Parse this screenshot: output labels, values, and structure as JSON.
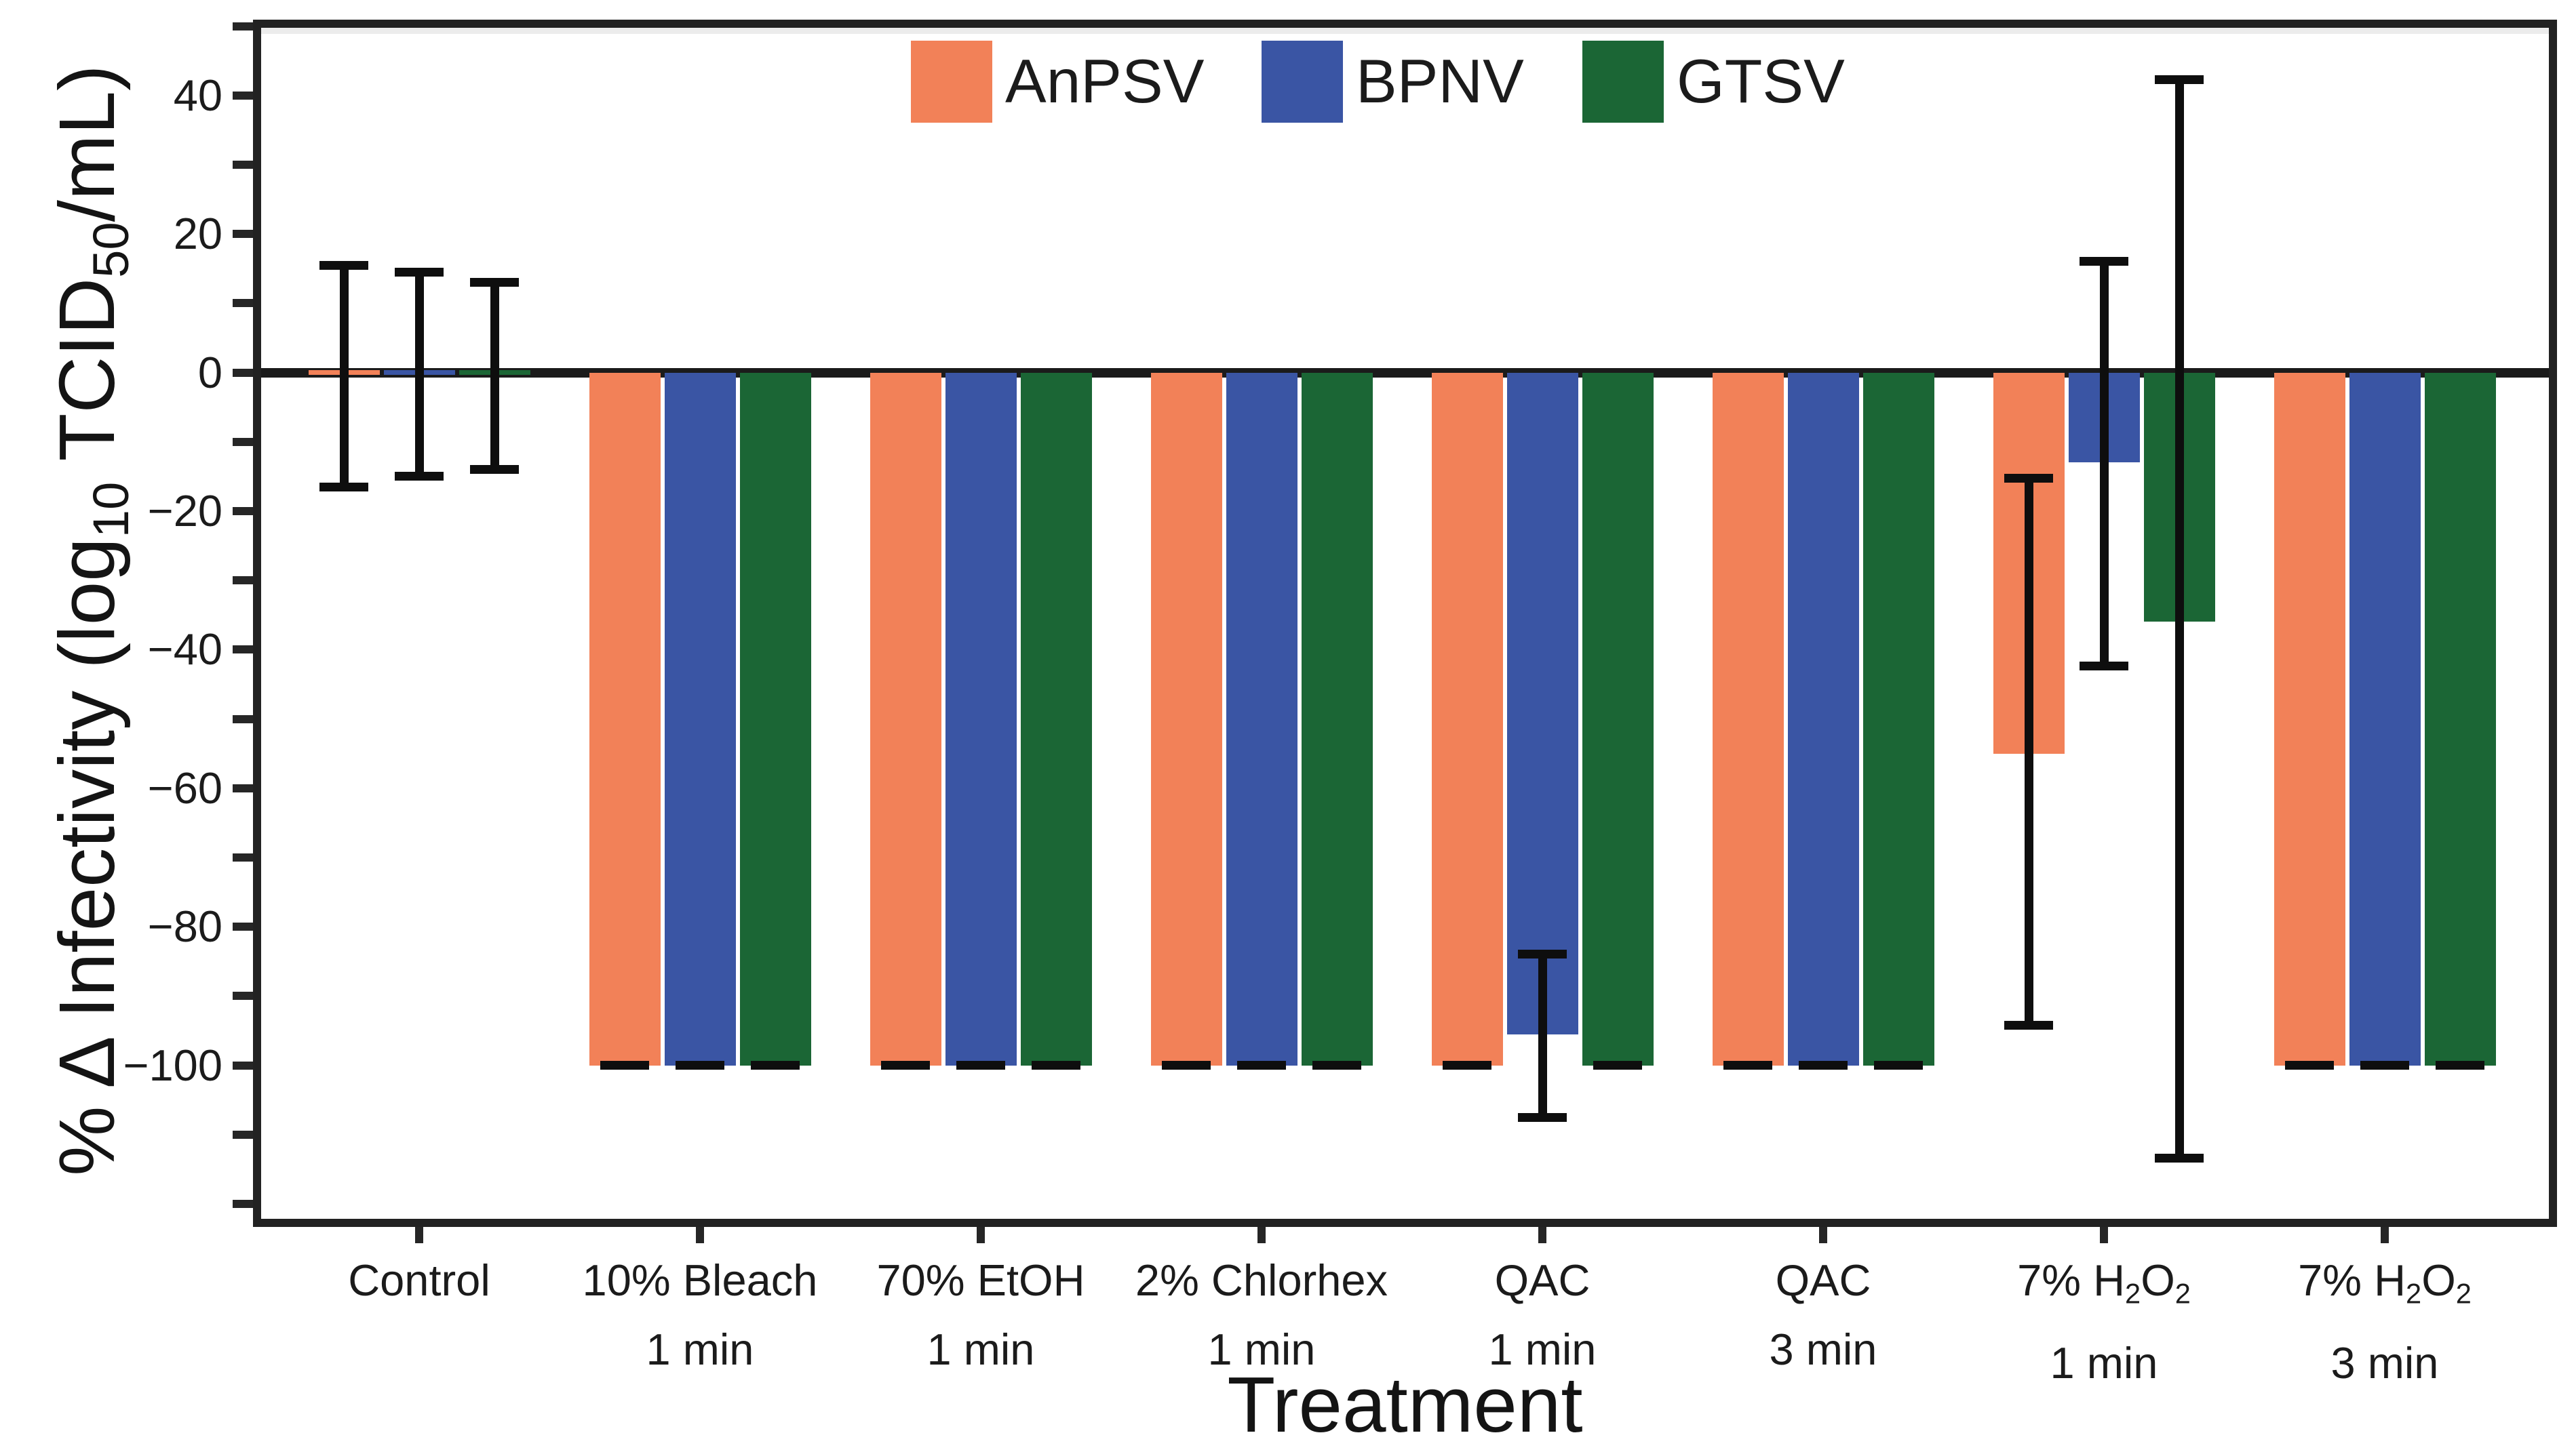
{
  "chart_data": {
    "type": "bar",
    "title": "",
    "xlabel": "Treatment",
    "ylabel": "% Δ Infectivity (log10 TCID50/mL)",
    "ylabel_segments": [
      {
        "t": "% Δ Infectivity (log"
      },
      {
        "t": "10",
        "sub": true
      },
      {
        "t": " TCID"
      },
      {
        "t": "50",
        "sub": true
      },
      {
        "t": "/mL)"
      }
    ],
    "categories": [
      {
        "id": "control",
        "label": "Control",
        "lines": [
          [
            {
              "t": "Control"
            }
          ]
        ]
      },
      {
        "id": "bleach-1min",
        "label": "10% Bleach 1 min",
        "lines": [
          [
            {
              "t": "10% Bleach"
            }
          ],
          [
            {
              "t": "1 min"
            }
          ]
        ]
      },
      {
        "id": "etoh-1min",
        "label": "70% EtOH 1 min",
        "lines": [
          [
            {
              "t": "70% EtOH"
            }
          ],
          [
            {
              "t": "1 min"
            }
          ]
        ]
      },
      {
        "id": "chlorhex-1min",
        "label": "2% Chlorhex 1 min",
        "lines": [
          [
            {
              "t": "2% Chlorhex"
            }
          ],
          [
            {
              "t": "1 min"
            }
          ]
        ]
      },
      {
        "id": "qac-1min",
        "label": "QAC 1 min",
        "lines": [
          [
            {
              "t": "QAC"
            }
          ],
          [
            {
              "t": "1 min"
            }
          ]
        ]
      },
      {
        "id": "qac-3min",
        "label": "QAC 3 min",
        "lines": [
          [
            {
              "t": "QAC"
            }
          ],
          [
            {
              "t": "3 min"
            }
          ]
        ]
      },
      {
        "id": "h2o2-1min",
        "label": "7% H2O2 1 min",
        "lines": [
          [
            {
              "t": "7% H"
            },
            {
              "t": "2",
              "sub": true
            },
            {
              "t": "O"
            },
            {
              "t": "2",
              "sub": true
            }
          ],
          [
            {
              "t": "1 min"
            }
          ]
        ]
      },
      {
        "id": "h2o2-3min",
        "label": "7% H2O2 3 min",
        "lines": [
          [
            {
              "t": "7% H"
            },
            {
              "t": "2",
              "sub": true
            },
            {
              "t": "O"
            },
            {
              "t": "2",
              "sub": true
            }
          ],
          [
            {
              "t": "3 min"
            }
          ]
        ]
      }
    ],
    "series": [
      {
        "name": "AnPSV",
        "color": "#F28158",
        "values": [
          0,
          -100,
          -100,
          -100,
          -100,
          -100,
          -55,
          -100
        ],
        "err_high": [
          15.5,
          -100,
          -100,
          -100,
          -100,
          -100,
          -15.3,
          -100
        ],
        "err_low": [
          -16.5,
          -100,
          -100,
          -100,
          -100,
          -100,
          -94.2,
          -100
        ]
      },
      {
        "name": "BPNV",
        "color": "#3A55A4",
        "values": [
          0,
          -100,
          -100,
          -100,
          -95.5,
          -100,
          -13,
          -100
        ],
        "err_high": [
          14.5,
          -100,
          -100,
          -100,
          -84,
          -100,
          16,
          -100
        ],
        "err_low": [
          -15,
          -100,
          -100,
          -100,
          -107.5,
          -100,
          -42.4,
          -100
        ]
      },
      {
        "name": "GTSV",
        "color": "#1B6635",
        "values": [
          0,
          -100,
          -100,
          -100,
          -100,
          -100,
          -36,
          -100
        ],
        "err_high": [
          13,
          -100,
          -100,
          -100,
          -100,
          -100,
          42.3,
          -100
        ],
        "err_low": [
          -14,
          -100,
          -100,
          -100,
          -100,
          -100,
          -113.4,
          -100
        ]
      }
    ],
    "y_axis": {
      "major_ticks": [
        40,
        20,
        0,
        -20,
        -40,
        -60,
        -80,
        -100
      ],
      "minor_ticks": [
        50,
        30,
        10,
        -10,
        -30,
        -50,
        -70,
        -90,
        -110,
        -120
      ],
      "range": [
        -122,
        51
      ],
      "baseline": 0
    },
    "legend_position": "top-center",
    "grid": "off",
    "colors": {
      "axis": "#1b1b1b",
      "background": "#ffffff",
      "top_band": "#ececec"
    }
  }
}
